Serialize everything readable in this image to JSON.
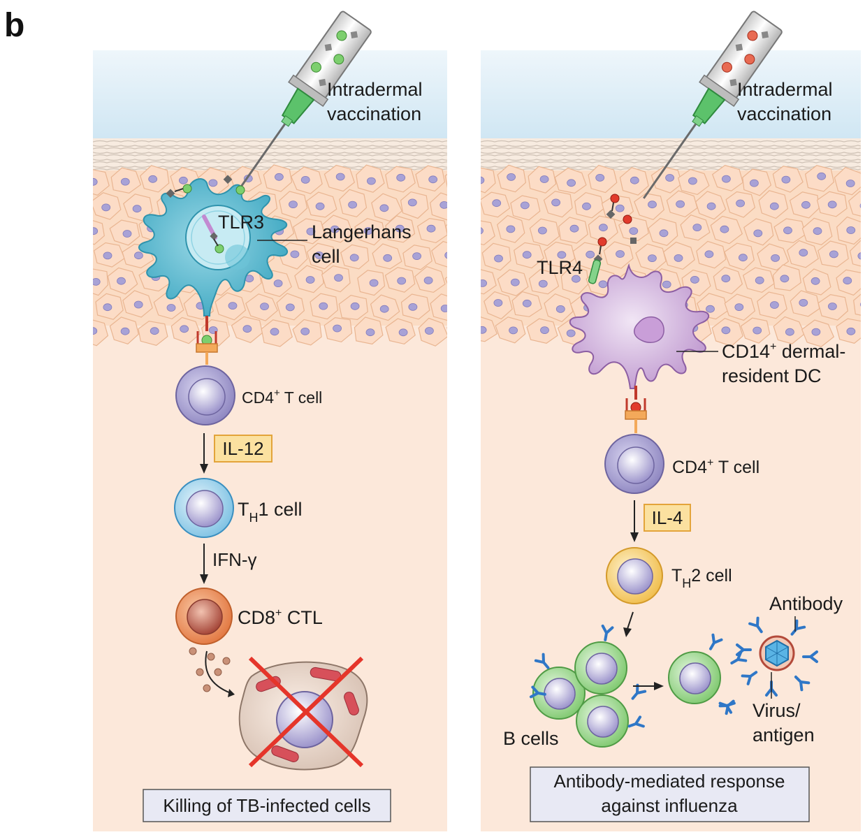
{
  "panel_letter": "b",
  "left_panel": {
    "injection": [
      "Intradermal",
      "vaccination"
    ],
    "tlr": "TLR3",
    "dc_label": [
      "Langerhans",
      "cell"
    ],
    "cd4_main": "CD4",
    "cd4_sup": "+",
    "cd4_tail": " T cell",
    "cytokine_1": "IL-12",
    "th_main": "T",
    "th_sub": "H",
    "th_tail": "1 cell",
    "cytokine_2": "IFN-γ",
    "ctl_main": "CD8",
    "ctl_sup": "+",
    "ctl_tail": " CTL",
    "outcome": "Killing of TB-infected cells"
  },
  "right_panel": {
    "injection": [
      "Intradermal",
      "vaccination"
    ],
    "tlr": "TLR4",
    "dc_main": "CD14",
    "dc_sup": "+",
    "dc_tail": " dermal-",
    "dc_line2": "resident DC",
    "cd4_main": "CD4",
    "cd4_sup": "+",
    "cd4_tail": " T cell",
    "cytokine_1": "IL-4",
    "th_main": "T",
    "th_sub": "H",
    "th_tail": "2 cell",
    "b_cells": "B cells",
    "antibody": "Antibody",
    "virus": [
      "Virus/",
      "antigen"
    ],
    "outcome": [
      "Antibody-mediated response",
      "against influenza"
    ]
  },
  "colors": {
    "sky": "#dcecf6",
    "tissue": "#fce6d6",
    "epidermis": "#fbd9bf",
    "cell_outline": "#e9b591",
    "langerhans": "#53b9cf",
    "dermal_dc": "#c9a7d6",
    "t_cell": "#9c94c8",
    "th1": "#8ec9e6",
    "th2": "#f2c65c",
    "ctl": "#e3824f",
    "b_cell": "#8bd07c",
    "antibody": "#2f77c7",
    "cytokine_box": "#fbe1a0",
    "outcome_box": "#e8e9f4",
    "red_cross": "#e5352a",
    "adjuvant_left": "#7dcf6e",
    "adjuvant_right": "#e13b2c"
  }
}
